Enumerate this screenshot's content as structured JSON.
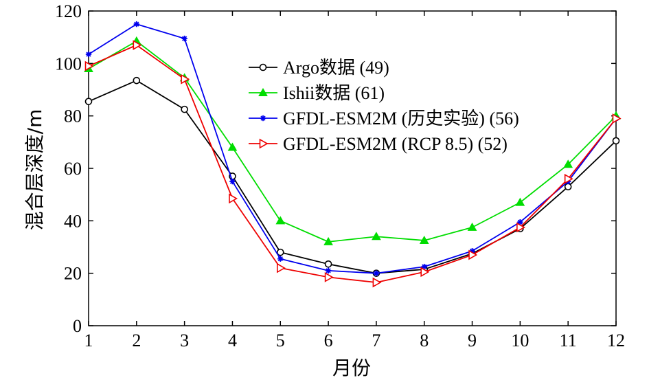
{
  "chart_data": {
    "type": "line",
    "title": "",
    "xlabel": "月份",
    "ylabel": "混合层深度/m",
    "x": [
      1,
      2,
      3,
      4,
      5,
      6,
      7,
      8,
      9,
      10,
      11,
      12
    ],
    "xlim": [
      1,
      12
    ],
    "ylim": [
      0,
      120
    ],
    "xticks": [
      1,
      2,
      3,
      4,
      5,
      6,
      7,
      8,
      9,
      10,
      11,
      12
    ],
    "yticks": [
      0,
      20,
      40,
      60,
      80,
      100,
      120
    ],
    "grid": false,
    "legend_position": "top-center",
    "series": [
      {
        "name": "Argo数据 (49)",
        "color": "#000000",
        "marker": "circle",
        "values": [
          85.5,
          93.5,
          82.5,
          57,
          28,
          23.5,
          20,
          21.5,
          27.5,
          37,
          53,
          70.5
        ]
      },
      {
        "name": "Ishii数据 (61)",
        "color": "#00dd00",
        "marker": "triangle-up",
        "values": [
          98,
          108.5,
          94.5,
          68,
          40,
          32,
          34,
          32.5,
          37.5,
          47,
          61.5,
          80
        ]
      },
      {
        "name": "GFDL-ESM2M (历史实验) (56)",
        "color": "#0000ee",
        "marker": "star",
        "values": [
          103.5,
          115,
          109.5,
          55,
          25.5,
          21,
          20,
          22.5,
          28.5,
          39.5,
          55,
          79
        ]
      },
      {
        "name": "GFDL-ESM2M (RCP 8.5) (52)",
        "color": "#ee0000",
        "marker": "triangle-right",
        "values": [
          99,
          107,
          94,
          48.5,
          22,
          18.5,
          16.5,
          20.5,
          27,
          37.5,
          56,
          79
        ]
      }
    ]
  }
}
